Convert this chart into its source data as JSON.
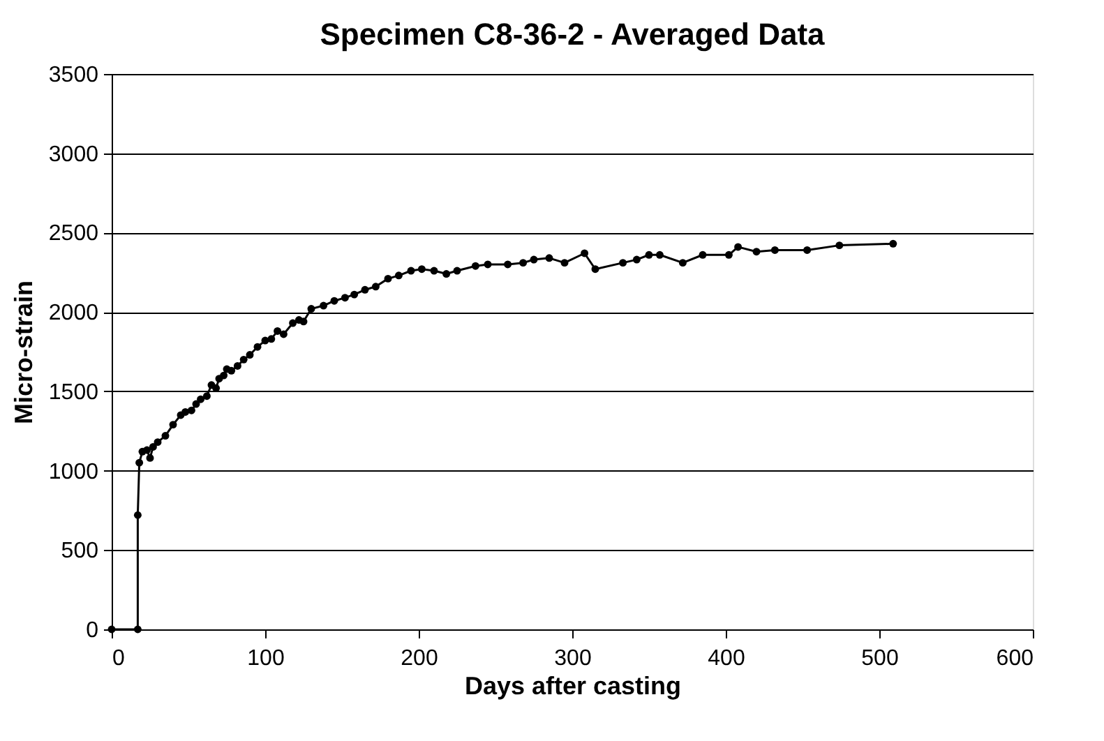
{
  "chart_data": {
    "type": "line",
    "title": "Specimen C8-36-2 - Averaged Data",
    "xlabel": "Days after casting",
    "ylabel": "Micro-strain",
    "x": [
      0,
      17,
      17,
      18,
      20,
      23,
      25,
      27,
      30,
      35,
      40,
      45,
      48,
      52,
      55,
      58,
      62,
      65,
      68,
      70,
      73,
      75,
      78,
      82,
      86,
      90,
      95,
      100,
      104,
      108,
      112,
      118,
      122,
      125,
      130,
      138,
      145,
      152,
      158,
      165,
      172,
      180,
      187,
      195,
      202,
      210,
      218,
      225,
      237,
      245,
      258,
      268,
      275,
      285,
      295,
      308,
      315,
      333,
      342,
      350,
      357,
      372,
      385,
      402,
      408,
      420,
      432,
      453,
      474,
      509
    ],
    "series": [
      {
        "color": "#000000",
        "values": [
          0,
          0,
          720,
          1050,
          1120,
          1130,
          1080,
          1150,
          1180,
          1220,
          1290,
          1350,
          1370,
          1380,
          1420,
          1450,
          1470,
          1540,
          1520,
          1580,
          1600,
          1640,
          1630,
          1660,
          1700,
          1730,
          1780,
          1820,
          1830,
          1880,
          1860,
          1930,
          1950,
          1940,
          2020,
          2040,
          2070,
          2090,
          2110,
          2140,
          2160,
          2210,
          2230,
          2260,
          2270,
          2260,
          2240,
          2260,
          2290,
          2300,
          2300,
          2310,
          2330,
          2340,
          2310,
          2370,
          2270,
          2310,
          2330,
          2360,
          2360,
          2310,
          2360,
          2360,
          2410,
          2380,
          2390,
          2390,
          2420,
          2430
        ]
      }
    ],
    "xlim": [
      0,
      600
    ],
    "xticks": [
      0,
      100,
      200,
      300,
      400,
      500,
      600
    ],
    "ylim": [
      0,
      3500
    ],
    "yticks": [
      0,
      500,
      1000,
      1500,
      2000,
      2500,
      3000,
      3500
    ],
    "grid": "y",
    "marker": "circle",
    "line_style": "solid"
  }
}
